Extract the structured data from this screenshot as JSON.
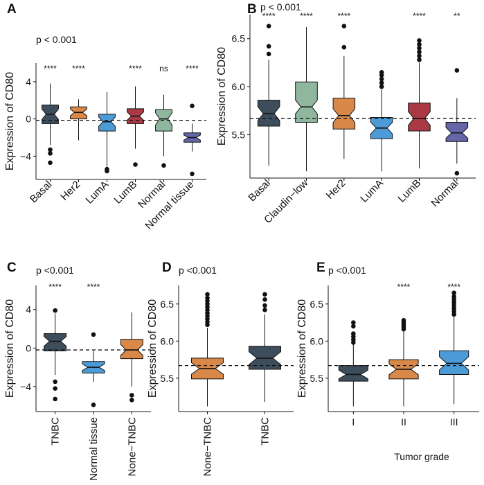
{
  "chart_data": [
    {
      "panel": "A",
      "type": "boxplot",
      "pvalue": "p < 0.001",
      "ylabel": "Expression of CD80",
      "xlabel": "",
      "ylim": [
        -6.5,
        6
      ],
      "yticks": [
        4,
        0,
        -4
      ],
      "ytick_labels": [
        "4",
        "0",
        "−4"
      ],
      "ref_line": -0.15,
      "notched": true,
      "categories": [
        "Basal",
        "Her2",
        "LumA",
        "LumB",
        "Normal",
        "Normal tissue"
      ],
      "colors": [
        "#3e4d5c",
        "#d8894a",
        "#4c9bd7",
        "#a93a45",
        "#8fb79e",
        "#6466a6"
      ],
      "series": [
        {
          "name": "Basal",
          "whislo": -2.8,
          "q1": -0.5,
          "med": 0.5,
          "q3": 1.5,
          "whishi": 3.8,
          "outliers": [
            -3.3,
            -3.7,
            -4.7
          ],
          "sig": "****"
        },
        {
          "name": "Her2",
          "whislo": -2.3,
          "q1": 0.0,
          "med": 0.7,
          "q3": 1.3,
          "whishi": 2.1,
          "outliers": [],
          "sig": "****"
        },
        {
          "name": "LumA",
          "whislo": -5.2,
          "q1": -1.3,
          "med": -0.3,
          "q3": 0.5,
          "whishi": 2.9,
          "outliers": [
            -5.4,
            -5.6
          ],
          "sig": ""
        },
        {
          "name": "LumB",
          "whislo": -3.2,
          "q1": -0.5,
          "med": 0.3,
          "q3": 1.1,
          "whishi": 3.5,
          "outliers": [
            -4.9
          ],
          "sig": "****"
        },
        {
          "name": "Normal",
          "whislo": -4.0,
          "q1": -1.3,
          "med": 0.0,
          "q3": 1.0,
          "whishi": 2.6,
          "outliers": [
            -5.0
          ],
          "sig": "ns"
        },
        {
          "name": "Normal tissue",
          "whislo": -3.5,
          "q1": -2.5,
          "med": -2.0,
          "q3": -1.5,
          "whishi": -0.5,
          "outliers": [
            1.4,
            -5.9
          ],
          "sig": "****"
        }
      ]
    },
    {
      "panel": "B",
      "type": "boxplot",
      "pvalue": "p < 0.001",
      "ylabel": "Expression of CD80",
      "xlabel": "",
      "ylim": [
        5.05,
        6.75
      ],
      "yticks": [
        6.5,
        6.0,
        5.5
      ],
      "ytick_labels": [
        "6.5",
        "6.0",
        "5.5"
      ],
      "ref_line": 5.67,
      "notched": true,
      "categories": [
        "Basal",
        "Claudin−low",
        "Her2",
        "LumA",
        "LumB",
        "Normal"
      ],
      "colors": [
        "#3e4d5c",
        "#8fb79e",
        "#d8894a",
        "#4c9bd7",
        "#a93a45",
        "#6466a6"
      ],
      "series": [
        {
          "name": "Basal",
          "whislo": 5.18,
          "q1": 5.59,
          "med": 5.72,
          "q3": 5.86,
          "whishi": 6.28,
          "outliers": [
            6.34,
            6.42,
            6.63
          ],
          "sig": "****"
        },
        {
          "name": "Claudin−low",
          "whislo": 5.12,
          "q1": 5.63,
          "med": 5.79,
          "q3": 6.05,
          "whishi": 6.62,
          "outliers": [],
          "sig": "****"
        },
        {
          "name": "Her2",
          "whislo": 5.25,
          "q1": 5.56,
          "med": 5.7,
          "q3": 5.88,
          "whishi": 6.32,
          "outliers": [
            6.41,
            6.63
          ],
          "sig": "****"
        },
        {
          "name": "LumA",
          "whislo": 5.12,
          "q1": 5.46,
          "med": 5.57,
          "q3": 5.68,
          "whishi": 5.97,
          "outliers": [
            6.0,
            6.04,
            6.08,
            6.12,
            6.15
          ],
          "sig": ""
        },
        {
          "name": "LumB",
          "whislo": 5.15,
          "q1": 5.54,
          "med": 5.67,
          "q3": 5.83,
          "whishi": 6.25,
          "outliers": [
            6.28,
            6.32,
            6.36,
            6.4,
            6.44,
            6.48
          ],
          "sig": "****"
        },
        {
          "name": "Normal",
          "whislo": 5.2,
          "q1": 5.43,
          "med": 5.52,
          "q3": 5.63,
          "whishi": 5.88,
          "outliers": [
            6.17,
            5.1
          ],
          "sig": "**"
        }
      ]
    },
    {
      "panel": "C",
      "type": "boxplot",
      "pvalue": "p <0.001",
      "ylabel": "Expression of CD80",
      "xlabel": "",
      "ylim": [
        -6.6,
        6.5
      ],
      "yticks": [
        4,
        0,
        -4
      ],
      "ytick_labels": [
        "4",
        "0",
        "−4"
      ],
      "ref_line": -0.2,
      "notched": true,
      "categories": [
        "TNBC",
        "Normal tissue",
        "None−TNBC"
      ],
      "colors": [
        "#3e4d5c",
        "#4c9bd7",
        "#d8894a"
      ],
      "series": [
        {
          "name": "TNBC",
          "whislo": -2.8,
          "q1": -0.3,
          "med": 0.7,
          "q3": 1.5,
          "whishi": 3.6,
          "outliers": [
            3.9,
            -3.5,
            -4.2,
            -5.3
          ],
          "sig": "****"
        },
        {
          "name": "Normal tissue",
          "whislo": -3.5,
          "q1": -2.6,
          "med": -2.0,
          "q3": -1.4,
          "whishi": -0.3,
          "outliers": [
            1.4,
            -5.9
          ],
          "sig": "****"
        },
        {
          "name": "None−TNBC",
          "whislo": -4.0,
          "q1": -1.1,
          "med": -0.2,
          "q3": 0.9,
          "whishi": 3.7,
          "outliers": [
            -4.9,
            -5.4
          ],
          "sig": ""
        }
      ]
    },
    {
      "panel": "D",
      "type": "boxplot",
      "pvalue": "p <0.001",
      "ylabel": "Expression of CD80",
      "xlabel": "",
      "ylim": [
        5.05,
        6.75
      ],
      "yticks": [
        6.5,
        6.0,
        5.5
      ],
      "ytick_labels": [
        "6.5",
        "6.0",
        "5.5"
      ],
      "ref_line": 5.67,
      "notched": true,
      "categories": [
        "None−TNBC",
        "TNBC"
      ],
      "colors": [
        "#d8894a",
        "#3e4d5c"
      ],
      "series": [
        {
          "name": "None−TNBC",
          "whislo": 5.12,
          "q1": 5.49,
          "med": 5.63,
          "q3": 5.77,
          "whishi": 6.18,
          "outliers": [
            6.22,
            6.26,
            6.3,
            6.34,
            6.38,
            6.42,
            6.46,
            6.5,
            6.54,
            6.58,
            6.63
          ],
          "sig": ""
        },
        {
          "name": "TNBC",
          "whislo": 5.18,
          "q1": 5.62,
          "med": 5.77,
          "q3": 5.93,
          "whishi": 6.36,
          "outliers": [
            6.42,
            6.48,
            6.56,
            6.63
          ],
          "sig": ""
        }
      ]
    },
    {
      "panel": "E",
      "type": "boxplot",
      "pvalue": "p <0.001",
      "ylabel": "Expression of CD80",
      "xlabel": "Tumor grade",
      "ylim": [
        5.05,
        6.75
      ],
      "yticks": [
        6.5,
        6.0,
        5.5
      ],
      "ytick_labels": [
        "6.5",
        "6.0",
        "5.5"
      ],
      "ref_line": 5.67,
      "notched": true,
      "categories": [
        "I",
        "II",
        "III"
      ],
      "colors": [
        "#3e4d5c",
        "#d8894a",
        "#4c9bd7"
      ],
      "series": [
        {
          "name": "I",
          "whislo": 5.12,
          "q1": 5.46,
          "med": 5.55,
          "q3": 5.67,
          "whishi": 5.95,
          "outliers": [
            5.98,
            6.02,
            6.06,
            6.1,
            6.2,
            6.25
          ],
          "sig": ""
        },
        {
          "name": "II",
          "whislo": 5.12,
          "q1": 5.49,
          "med": 5.62,
          "q3": 5.75,
          "whishi": 6.13,
          "outliers": [
            6.16,
            6.19,
            6.22,
            6.25,
            6.28
          ],
          "sig": "****"
        },
        {
          "name": "III",
          "whislo": 5.15,
          "q1": 5.55,
          "med": 5.7,
          "q3": 5.87,
          "whishi": 6.33,
          "outliers": [
            6.36,
            6.4,
            6.44,
            6.48,
            6.52,
            6.56,
            6.6,
            6.65
          ],
          "sig": "****"
        }
      ]
    }
  ]
}
